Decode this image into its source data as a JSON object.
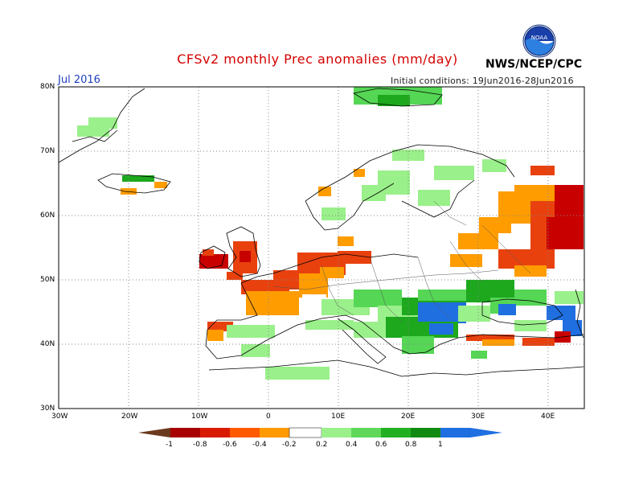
{
  "header": {
    "title": "CFSv2 monthly Prec anomalies (mm/day)",
    "agency": "NWS/NCEP/CPC",
    "month": "Jul 2016",
    "initial_conditions": "Initial conditions: 19Jun2016-28Jun2016",
    "logo_text": "NOAA"
  },
  "axes": {
    "lat_labels": [
      "80N",
      "70N",
      "60N",
      "50N",
      "40N",
      "30N"
    ],
    "lon_labels": [
      "30W",
      "20W",
      "10W",
      "0",
      "10E",
      "20E",
      "30E",
      "40E"
    ]
  },
  "colorbar": {
    "labels": [
      "-1",
      "-0.8",
      "-0.6",
      "-0.4",
      "-0.2",
      "0.2",
      "0.4",
      "0.6",
      "0.8",
      "1"
    ],
    "colors": [
      "#6b3a1e",
      "#a80000",
      "#d81b00",
      "#ff5a00",
      "#ff9a00",
      "#ffffff",
      "#9af08a",
      "#5fd85a",
      "#22b022",
      "#118a11",
      "#1f6fe0"
    ]
  },
  "palette": {
    "deep_red": "#c80000",
    "red": "#e8410e",
    "orange": "#ff9c00",
    "light_green": "#9af08a",
    "green": "#55d655",
    "dark_green": "#1da81d",
    "blue": "#1f6fe0"
  }
}
